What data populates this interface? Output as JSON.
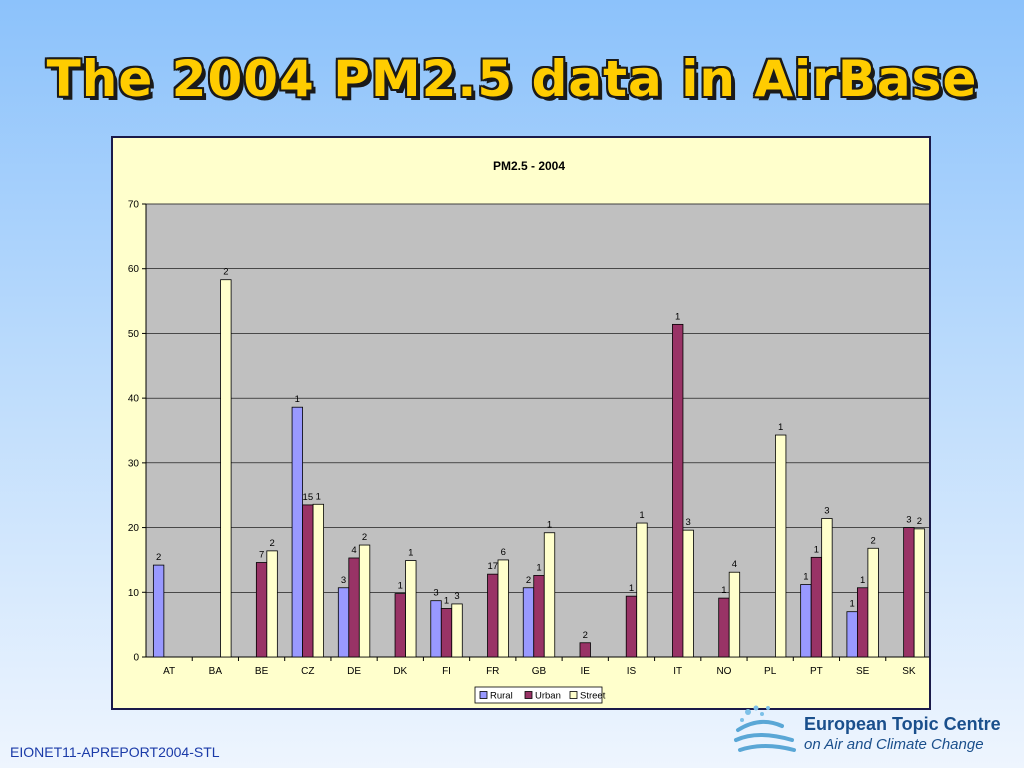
{
  "slide": {
    "title": "The 2004 PM2.5 data in AirBase",
    "footer_code": "EIONET11-APREPORT2004-STL",
    "logo_line1": "European Topic Centre",
    "logo_line2": "on Air and Climate Change"
  },
  "colors": {
    "rural": "#9999ff",
    "urban": "#993366",
    "street": "#ffffcc",
    "plot_bg": "#c0c0c0",
    "chart_bg": "#ffffcc",
    "title": "#ffcc00"
  },
  "chart_data": {
    "type": "bar",
    "title": "PM2.5 - 2004",
    "xlabel": "",
    "ylabel": "",
    "ylim": [
      0,
      70
    ],
    "yticks": [
      0,
      10,
      20,
      30,
      40,
      50,
      60,
      70
    ],
    "grid": true,
    "legend_position": "bottom",
    "categories": [
      "AT",
      "BA",
      "BE",
      "CZ",
      "DE",
      "DK",
      "FI",
      "FR",
      "GB",
      "IE",
      "IS",
      "IT",
      "NO",
      "PL",
      "PT",
      "SE",
      "SK"
    ],
    "series": [
      {
        "name": "Rural",
        "color": "#9999ff",
        "values": [
          14.2,
          null,
          null,
          38.6,
          10.7,
          null,
          8.7,
          null,
          10.7,
          null,
          null,
          null,
          null,
          null,
          11.2,
          7.0,
          null
        ],
        "labels": [
          "2",
          "",
          "",
          "1",
          "3",
          "",
          "3",
          "",
          "2",
          "",
          "",
          "",
          "",
          "",
          "1",
          "1",
          ""
        ]
      },
      {
        "name": "Urban",
        "color": "#993366",
        "values": [
          null,
          null,
          14.6,
          23.5,
          15.3,
          9.8,
          7.5,
          12.8,
          12.6,
          2.2,
          9.4,
          51.4,
          9.1,
          null,
          15.4,
          10.7,
          20.0
        ],
        "labels": [
          "",
          "",
          "7",
          "15",
          "4",
          "1",
          "1",
          "17",
          "1",
          "2",
          "1",
          "1",
          "1",
          "",
          "1",
          "1",
          "3"
        ]
      },
      {
        "name": "Street",
        "color": "#ffffcc",
        "values": [
          null,
          58.3,
          16.4,
          23.6,
          17.3,
          14.9,
          8.2,
          15.0,
          19.2,
          null,
          20.7,
          19.6,
          13.1,
          34.3,
          21.4,
          16.8,
          19.8
        ],
        "labels": [
          "",
          "2",
          "2",
          "1",
          "2",
          "1",
          "3",
          "6",
          "1",
          "",
          "1",
          "3",
          "4",
          "1",
          "3",
          "2",
          "2"
        ]
      }
    ]
  }
}
